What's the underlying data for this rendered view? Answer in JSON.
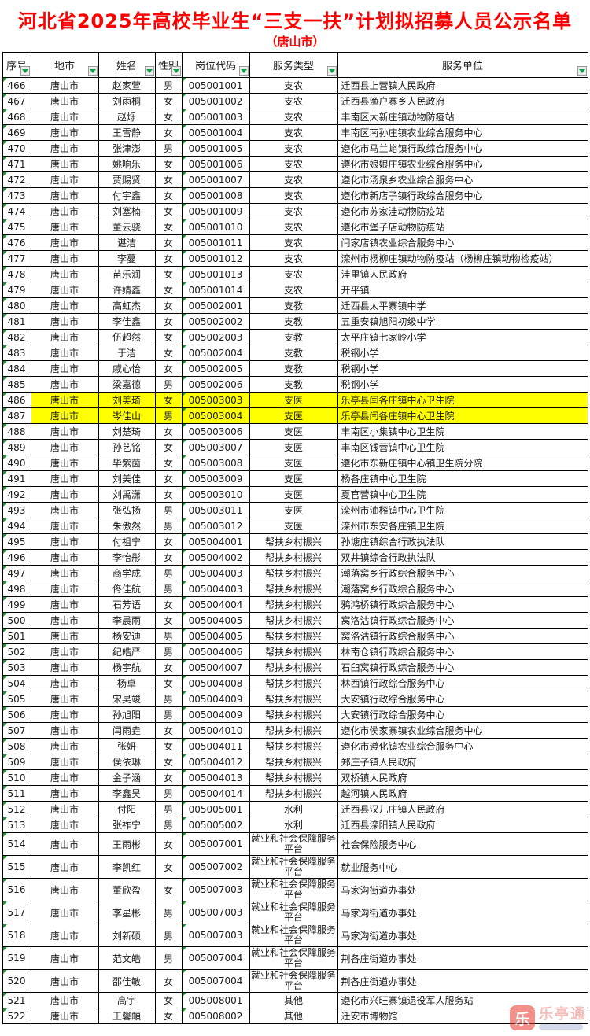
{
  "page": {
    "title": "河北省2025年高校毕业生“三支一扶”计划拟招募人员公示名单",
    "subtitle": "（唐山市）"
  },
  "colors": {
    "title_red": "#FE0000",
    "highlight_yellow": "#FFFF00",
    "filter_green": "#0F9D4A",
    "indicator_green": "#219131",
    "border_black": "#000000"
  },
  "watermark": {
    "app_name": "乐亭通",
    "icon": "乐"
  },
  "icons": {
    "filter": "filter-dropdown-icon",
    "corner": "text-number-error-indicator-icon"
  },
  "table": {
    "columns": [
      {
        "key": "no",
        "label": "序号"
      },
      {
        "key": "city",
        "label": "地市"
      },
      {
        "key": "name",
        "label": "姓名"
      },
      {
        "key": "gender",
        "label": "性别"
      },
      {
        "key": "code",
        "label": "岗位代码"
      },
      {
        "key": "type",
        "label": "服务类型"
      },
      {
        "key": "unit",
        "label": "服务单位"
      }
    ],
    "rows": [
      {
        "no": "466",
        "city": "唐山市",
        "name": "赵家萱",
        "gender": "男",
        "code": "005001001",
        "type": "支农",
        "unit": "迁西县上营镇人民政府",
        "highlight": false
      },
      {
        "no": "467",
        "city": "唐山市",
        "name": "刘雨桐",
        "gender": "女",
        "code": "005001002",
        "type": "支农",
        "unit": "迁西县渔户寨乡人民政府",
        "highlight": false
      },
      {
        "no": "468",
        "city": "唐山市",
        "name": "赵烁",
        "gender": "女",
        "code": "005001003",
        "type": "支农",
        "unit": "丰南区大新庄镇动物防疫站",
        "highlight": false
      },
      {
        "no": "469",
        "city": "唐山市",
        "name": "王雪静",
        "gender": "女",
        "code": "005001004",
        "type": "支农",
        "unit": "丰南区南孙庄镇农业综合服务中心",
        "highlight": false
      },
      {
        "no": "470",
        "city": "唐山市",
        "name": "张津澎",
        "gender": "男",
        "code": "005001005",
        "type": "支农",
        "unit": "遵化市马兰峪镇行政综合服务中心",
        "highlight": false
      },
      {
        "no": "471",
        "city": "唐山市",
        "name": "姚响乐",
        "gender": "女",
        "code": "005001006",
        "type": "支农",
        "unit": "遵化市娘娘庄镇农业综合服务中心",
        "highlight": false
      },
      {
        "no": "472",
        "city": "唐山市",
        "name": "贾赐贤",
        "gender": "女",
        "code": "005001007",
        "type": "支农",
        "unit": "遵化市汤泉乡农业综合服务中心",
        "highlight": false
      },
      {
        "no": "473",
        "city": "唐山市",
        "name": "付宇鑫",
        "gender": "女",
        "code": "005001008",
        "type": "支农",
        "unit": "遵化市新店子镇行政综合服务中心",
        "highlight": false
      },
      {
        "no": "474",
        "city": "唐山市",
        "name": "刘塞楠",
        "gender": "女",
        "code": "005001009",
        "type": "支农",
        "unit": "遵化市苏家洼动物防疫站",
        "highlight": false
      },
      {
        "no": "475",
        "city": "唐山市",
        "name": "董云骁",
        "gender": "女",
        "code": "005001010",
        "type": "支农",
        "unit": "遵化市堡子店动物防疫站",
        "highlight": false
      },
      {
        "no": "476",
        "city": "唐山市",
        "name": "谌洁",
        "gender": "女",
        "code": "005001011",
        "type": "支农",
        "unit": "闫家店镇农业综合服务中心",
        "highlight": false
      },
      {
        "no": "477",
        "city": "唐山市",
        "name": "李蔓",
        "gender": "女",
        "code": "005001012",
        "type": "支农",
        "unit": "滦州市杨柳庄镇动物防疫站（杨柳庄镇动物检疫站）",
        "highlight": false
      },
      {
        "no": "478",
        "city": "唐山市",
        "name": "苗乐润",
        "gender": "女",
        "code": "005001013",
        "type": "支农",
        "unit": "洼里镇人民政府",
        "highlight": false
      },
      {
        "no": "479",
        "city": "唐山市",
        "name": "许婧鑫",
        "gender": "女",
        "code": "005001014",
        "type": "支农",
        "unit": "开平镇",
        "highlight": false
      },
      {
        "no": "480",
        "city": "唐山市",
        "name": "高虹杰",
        "gender": "女",
        "code": "005002001",
        "type": "支教",
        "unit": "迁西县太平寨镇中学",
        "highlight": false
      },
      {
        "no": "481",
        "city": "唐山市",
        "name": "李佳鑫",
        "gender": "女",
        "code": "005002002",
        "type": "支教",
        "unit": "五重安镇旭阳初级中学",
        "highlight": false
      },
      {
        "no": "482",
        "city": "唐山市",
        "name": "伍超然",
        "gender": "女",
        "code": "005002003",
        "type": "支教",
        "unit": "太平庄镇七家岭小学",
        "highlight": false
      },
      {
        "no": "483",
        "city": "唐山市",
        "name": "于洁",
        "gender": "女",
        "code": "005002004",
        "type": "支教",
        "unit": "税钢小学",
        "highlight": false
      },
      {
        "no": "484",
        "city": "唐山市",
        "name": "戚心怡",
        "gender": "女",
        "code": "005002005",
        "type": "支教",
        "unit": "税钢小学",
        "highlight": false
      },
      {
        "no": "485",
        "city": "唐山市",
        "name": "梁嘉德",
        "gender": "男",
        "code": "005002006",
        "type": "支教",
        "unit": "税钢小学",
        "highlight": false
      },
      {
        "no": "486",
        "city": "唐山市",
        "name": "刘美琦",
        "gender": "女",
        "code": "005003003",
        "type": "支医",
        "unit": "乐亭县闫各庄镇中心卫生院",
        "highlight": true
      },
      {
        "no": "487",
        "city": "唐山市",
        "name": "岑佳山",
        "gender": "男",
        "code": "005003004",
        "type": "支医",
        "unit": "乐亭县闫各庄镇中心卫生院",
        "highlight": true
      },
      {
        "no": "488",
        "city": "唐山市",
        "name": "刘楚琦",
        "gender": "女",
        "code": "005003006",
        "type": "支医",
        "unit": "丰南区小集镇中心卫生院",
        "highlight": false
      },
      {
        "no": "489",
        "city": "唐山市",
        "name": "孙艺铭",
        "gender": "女",
        "code": "005003007",
        "type": "支医",
        "unit": "丰南区钱营镇中心卫生院",
        "highlight": false
      },
      {
        "no": "490",
        "city": "唐山市",
        "name": "毕紫茵",
        "gender": "女",
        "code": "005003008",
        "type": "支医",
        "unit": "遵化市东新庄镇中心镇卫生院分院",
        "highlight": false
      },
      {
        "no": "491",
        "city": "唐山市",
        "name": "刘美佳",
        "gender": "女",
        "code": "005003009",
        "type": "支医",
        "unit": "杨各庄镇中心卫生院",
        "highlight": false
      },
      {
        "no": "492",
        "city": "唐山市",
        "name": "刘禹潇",
        "gender": "女",
        "code": "005003010",
        "type": "支医",
        "unit": "夏官营镇中心卫生院",
        "highlight": false
      },
      {
        "no": "493",
        "city": "唐山市",
        "name": "张弘扬",
        "gender": "男",
        "code": "005003011",
        "type": "支医",
        "unit": "滦州市油榨镇中心卫生院",
        "highlight": false
      },
      {
        "no": "494",
        "city": "唐山市",
        "name": "朱傲然",
        "gender": "男",
        "code": "005003012",
        "type": "支医",
        "unit": "滦州市东安各庄镇卫生院",
        "highlight": false
      },
      {
        "no": "495",
        "city": "唐山市",
        "name": "付祖宁",
        "gender": "女",
        "code": "005004001",
        "type": "帮扶乡村振兴",
        "unit": "孙塘庄镇综合行政执法队",
        "highlight": false
      },
      {
        "no": "496",
        "city": "唐山市",
        "name": "李怡彤",
        "gender": "女",
        "code": "005004002",
        "type": "帮扶乡村振兴",
        "unit": "双井镇综合行政执法队",
        "highlight": false
      },
      {
        "no": "497",
        "city": "唐山市",
        "name": "商学成",
        "gender": "男",
        "code": "005004003",
        "type": "帮扶乡村振兴",
        "unit": "潮落窝乡行政综合服务中心",
        "highlight": false
      },
      {
        "no": "498",
        "city": "唐山市",
        "name": "佟佳航",
        "gender": "男",
        "code": "005004003",
        "type": "帮扶乡村振兴",
        "unit": "潮落窝乡行政综合服务中心",
        "highlight": false
      },
      {
        "no": "499",
        "city": "唐山市",
        "name": "石芳语",
        "gender": "女",
        "code": "005004004",
        "type": "帮扶乡村振兴",
        "unit": "鸦鸿桥镇行政综合服务中心",
        "highlight": false
      },
      {
        "no": "500",
        "city": "唐山市",
        "name": "李晨雨",
        "gender": "女",
        "code": "005004005",
        "type": "帮扶乡村振兴",
        "unit": "窝洛沽镇行政综合服务中心",
        "highlight": false
      },
      {
        "no": "501",
        "city": "唐山市",
        "name": "杨安迪",
        "gender": "男",
        "code": "005004005",
        "type": "帮扶乡村振兴",
        "unit": "窝洛沽镇行政综合服务中心",
        "highlight": false
      },
      {
        "no": "502",
        "city": "唐山市",
        "name": "纪皓严",
        "gender": "男",
        "code": "005004006",
        "type": "帮扶乡村振兴",
        "unit": "林南仓镇行政综合服务中心",
        "highlight": false
      },
      {
        "no": "503",
        "city": "唐山市",
        "name": "杨宇航",
        "gender": "女",
        "code": "005004007",
        "type": "帮扶乡村振兴",
        "unit": "石臼窝镇行政综合服务中心",
        "highlight": false
      },
      {
        "no": "504",
        "city": "唐山市",
        "name": "杨卓",
        "gender": "女",
        "code": "005004008",
        "type": "帮扶乡村振兴",
        "unit": "林西镇行政综合服务中心",
        "highlight": false
      },
      {
        "no": "505",
        "city": "唐山市",
        "name": "宋昊竣",
        "gender": "男",
        "code": "005004009",
        "type": "帮扶乡村振兴",
        "unit": "大安镇行政综合服务中心",
        "highlight": false
      },
      {
        "no": "506",
        "city": "唐山市",
        "name": "孙旭阳",
        "gender": "男",
        "code": "005004009",
        "type": "帮扶乡村振兴",
        "unit": "大安镇行政综合服务中心",
        "highlight": false
      },
      {
        "no": "507",
        "city": "唐山市",
        "name": "闫雨垚",
        "gender": "女",
        "code": "005004010",
        "type": "帮扶乡村振兴",
        "unit": "遵化市侯家寨镇农业综合服务中心",
        "highlight": false
      },
      {
        "no": "508",
        "city": "唐山市",
        "name": "张妍",
        "gender": "女",
        "code": "005004011",
        "type": "帮扶乡村振兴",
        "unit": "遵化市遵化镇农业综合服务中心",
        "highlight": false
      },
      {
        "no": "509",
        "city": "唐山市",
        "name": "侯依琳",
        "gender": "女",
        "code": "005004012",
        "type": "帮扶乡村振兴",
        "unit": "郑庄子镇人民政府",
        "highlight": false
      },
      {
        "no": "510",
        "city": "唐山市",
        "name": "金子涵",
        "gender": "女",
        "code": "005004013",
        "type": "帮扶乡村振兴",
        "unit": "双桥镇人民政府",
        "highlight": false
      },
      {
        "no": "511",
        "city": "唐山市",
        "name": "李鑫昊",
        "gender": "男",
        "code": "005004014",
        "type": "帮扶乡村振兴",
        "unit": "越河镇人民政府",
        "highlight": false
      },
      {
        "no": "512",
        "city": "唐山市",
        "name": "付阳",
        "gender": "男",
        "code": "005005001",
        "type": "水利",
        "unit": "迁西县汉儿庄镇人民政府",
        "highlight": false
      },
      {
        "no": "513",
        "city": "唐山市",
        "name": "张祚宁",
        "gender": "男",
        "code": "005005002",
        "type": "水利",
        "unit": "迁西县滦阳镇人民政府",
        "highlight": false
      },
      {
        "no": "514",
        "city": "唐山市",
        "name": "王雨彬",
        "gender": "女",
        "code": "005007001",
        "type": "就业和社会保障服务平台",
        "unit": "社会保险服务中心",
        "highlight": false
      },
      {
        "no": "515",
        "city": "唐山市",
        "name": "李凯红",
        "gender": "女",
        "code": "005007002",
        "type": "就业和社会保障服务平台",
        "unit": "就业服务中心",
        "highlight": false
      },
      {
        "no": "516",
        "city": "唐山市",
        "name": "董欣盈",
        "gender": "女",
        "code": "005007003",
        "type": "就业和社会保障服务平台",
        "unit": "马家沟街道办事处",
        "highlight": false
      },
      {
        "no": "517",
        "city": "唐山市",
        "name": "李星彬",
        "gender": "男",
        "code": "005007003",
        "type": "就业和社会保障服务平台",
        "unit": "马家沟街道办事处",
        "highlight": false
      },
      {
        "no": "518",
        "city": "唐山市",
        "name": "刘新硕",
        "gender": "男",
        "code": "005007003",
        "type": "就业和社会保障服务平台",
        "unit": "马家沟街道办事处",
        "highlight": false
      },
      {
        "no": "519",
        "city": "唐山市",
        "name": "范文皓",
        "gender": "男",
        "code": "005007004",
        "type": "就业和社会保障服务平台",
        "unit": "荆各庄街道办事处",
        "highlight": false
      },
      {
        "no": "520",
        "city": "唐山市",
        "name": "邵佳敏",
        "gender": "女",
        "code": "005007004",
        "type": "就业和社会保障服务平台",
        "unit": "荆各庄街道办事处",
        "highlight": false
      },
      {
        "no": "521",
        "city": "唐山市",
        "name": "高宇",
        "gender": "女",
        "code": "005008001",
        "type": "其他",
        "unit": "遵化市兴旺寨镇退役军人服务站",
        "highlight": false
      },
      {
        "no": "522",
        "city": "唐山市",
        "name": "王馨頔",
        "gender": "女",
        "code": "005008002",
        "type": "其他",
        "unit": "迁安市博物馆",
        "highlight": false
      }
    ]
  }
}
